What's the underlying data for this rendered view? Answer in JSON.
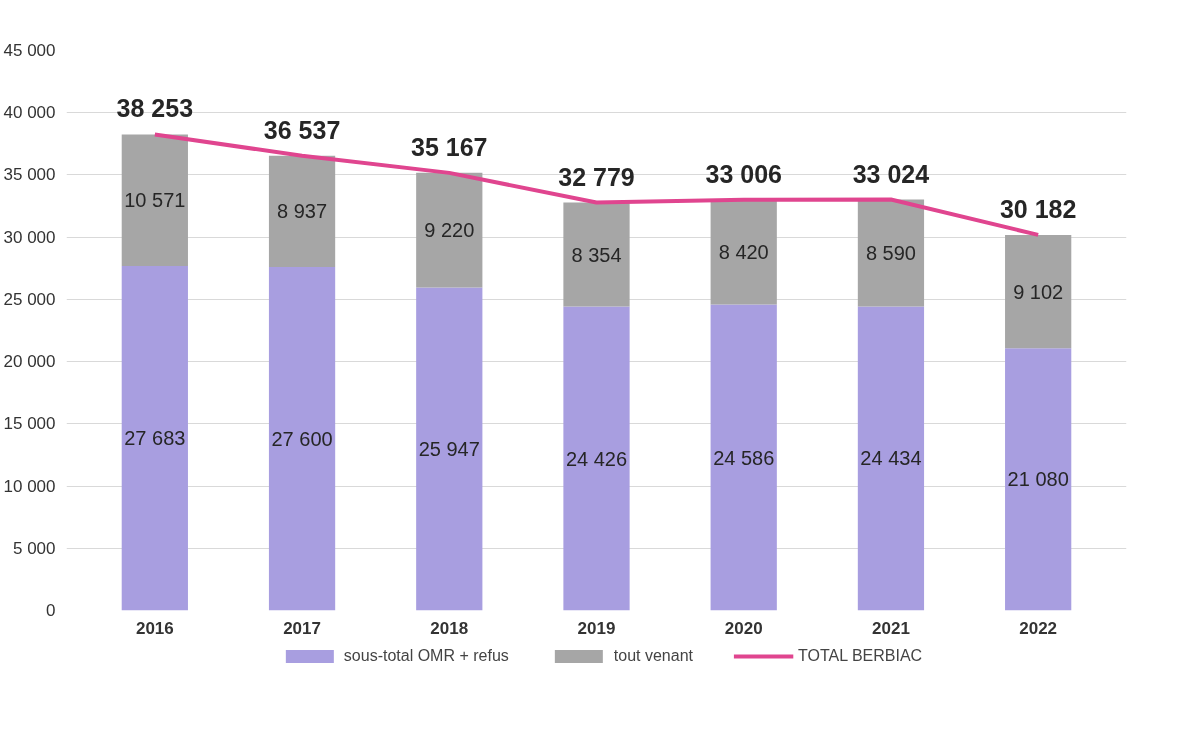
{
  "chart_data": {
    "type": "bar",
    "stacked": true,
    "categories": [
      "2016",
      "2017",
      "2018",
      "2019",
      "2020",
      "2021",
      "2022"
    ],
    "series": [
      {
        "name": "sous-total OMR + refus",
        "color": "#a89ee0",
        "values": [
          27683,
          27600,
          25947,
          24426,
          24586,
          24434,
          21080
        ],
        "value_labels": [
          "27 683",
          "27 600",
          "25 947",
          "24 426",
          "24 586",
          "24 434",
          "21 080"
        ]
      },
      {
        "name": "tout venant",
        "color": "#a6a6a6",
        "values": [
          10571,
          8937,
          9220,
          8354,
          8420,
          8590,
          9102
        ],
        "value_labels": [
          "10 571",
          "8 937",
          "9 220",
          "8 354",
          "8 420",
          "8 590",
          "9 102"
        ]
      },
      {
        "name": "TOTAL BERBIAC",
        "type": "line",
        "color": "#e0458f",
        "values": [
          38253,
          36537,
          35167,
          32779,
          33006,
          33024,
          30182
        ],
        "value_labels": [
          "38 253",
          "36 537",
          "35 167",
          "32 779",
          "33 006",
          "33 024",
          "30 182"
        ]
      }
    ],
    "ylim": [
      0,
      45000
    ],
    "yticks": [
      0,
      {
        "value": 5000,
        "label": "5 000"
      },
      {
        "value": 10000,
        "label": "10 000"
      },
      {
        "value": 15000,
        "label": "15 000"
      },
      {
        "value": 20000,
        "label": "20 000"
      },
      {
        "value": 25000,
        "label": "25 000"
      },
      {
        "value": 30000,
        "label": "30 000"
      },
      {
        "value": 35000,
        "label": "35 000"
      },
      {
        "value": 40000,
        "label": "40 000"
      },
      {
        "value": 45000,
        "label": "45 000"
      }
    ],
    "grid": "y",
    "legend": "bottom"
  }
}
